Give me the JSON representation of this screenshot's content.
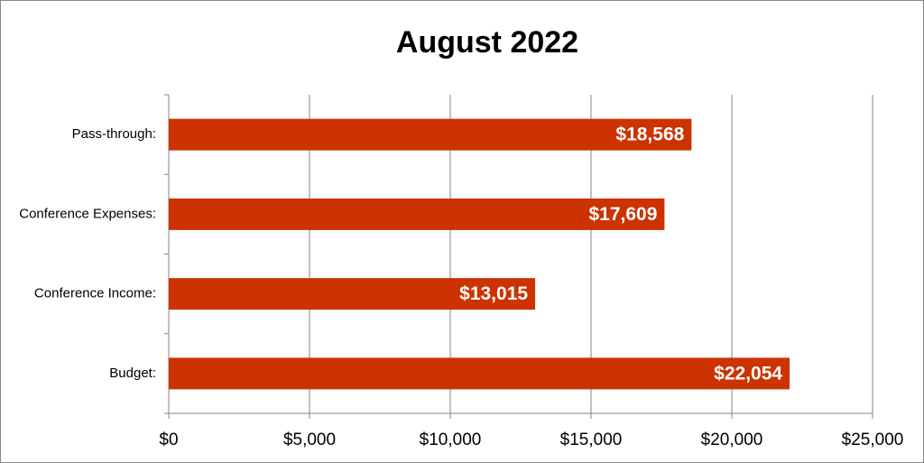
{
  "chart_data": {
    "type": "hbar",
    "title": "August 2022",
    "categories": [
      "Pass-through:",
      "Conference Expenses:",
      "Conference Income:",
      "Budget:"
    ],
    "values": [
      18568,
      17609,
      13015,
      22054
    ],
    "value_labels": [
      "$18,568",
      "$17,609",
      "$13,015",
      "$22,054"
    ],
    "color": "#cc3300",
    "xlim": [
      0,
      25000
    ],
    "xticks": [
      {
        "value": 0,
        "label": "$0"
      },
      {
        "value": 5000,
        "label": "$5,000"
      },
      {
        "value": 10000,
        "label": "$10,000"
      },
      {
        "value": 15000,
        "label": "$15,000"
      },
      {
        "value": 20000,
        "label": "$20,000"
      },
      {
        "value": 25000,
        "label": "$25,000"
      }
    ],
    "grid": true
  }
}
